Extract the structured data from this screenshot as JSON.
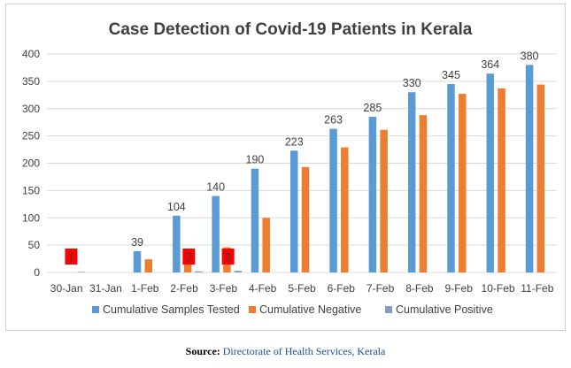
{
  "chart_data": {
    "type": "bar",
    "title": "Case Detection of Covid-19 Patients in Kerala",
    "categories": [
      "30-Jan",
      "31-Jan",
      "1-Feb",
      "2-Feb",
      "3-Feb",
      "4-Feb",
      "5-Feb",
      "6-Feb",
      "7-Feb",
      "8-Feb",
      "9-Feb",
      "10-Feb",
      "11-Feb"
    ],
    "ylim": [
      0,
      400
    ],
    "yticks": [
      0,
      50,
      100,
      150,
      200,
      250,
      300,
      350,
      400
    ],
    "grid": true,
    "legend_position": "bottom",
    "series": [
      {
        "name": "Cumulative Samples Tested",
        "color": "#5b9bd5",
        "values": [
          0,
          0,
          39,
          104,
          140,
          190,
          223,
          263,
          285,
          330,
          345,
          364,
          380
        ],
        "labels": [
          "",
          "",
          "39",
          "104",
          "140",
          "190",
          "223",
          "263",
          "285",
          "330",
          "345",
          "364",
          "380"
        ]
      },
      {
        "name": "Cumulative Negative",
        "color": "#ed7d31",
        "values": [
          0,
          0,
          24,
          36,
          46,
          100,
          193,
          229,
          261,
          288,
          327,
          337,
          344
        ]
      },
      {
        "name": "Cumulative Positive",
        "color": "#7f9fc0",
        "legend_text_color": "#ff0000",
        "values": [
          1,
          0,
          0,
          2,
          3,
          0,
          0,
          0,
          0,
          0,
          0,
          0,
          0
        ],
        "labels": [
          "1",
          "",
          "",
          "2",
          "3",
          "",
          "",
          "",
          "",
          "",
          "",
          "",
          ""
        ],
        "label_box_color": "#ff0000"
      }
    ]
  },
  "source": {
    "prefix": "Source:",
    "text": "Directorate of Health Services, Kerala"
  }
}
